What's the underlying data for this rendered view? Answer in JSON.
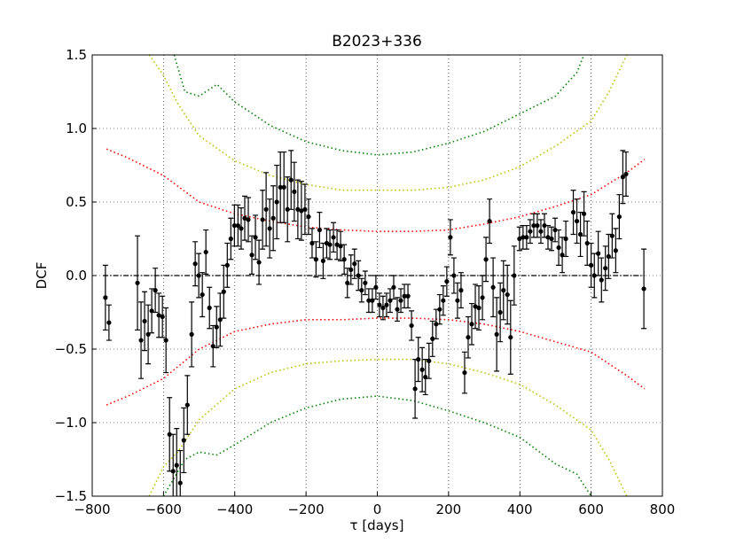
{
  "chart_data": {
    "type": "errorbar",
    "title": "B2023+336",
    "xlabel": "τ [days]",
    "ylabel": "DCF",
    "xlim": [
      -800,
      800
    ],
    "ylim": [
      -1.5,
      1.5
    ],
    "xticks": [
      {
        "value": -800,
        "label": "−800"
      },
      {
        "value": -600,
        "label": "−600"
      },
      {
        "value": -400,
        "label": "−400"
      },
      {
        "value": -200,
        "label": "−200"
      },
      0,
      200,
      400,
      600,
      800
    ],
    "yticks": [
      {
        "value": -1.5,
        "label": "−1.5"
      },
      {
        "value": -1.0,
        "label": "−1.0"
      },
      {
        "value": -0.5,
        "label": "−0.5"
      },
      {
        "value": 0,
        "label": "0.0"
      },
      {
        "value": 0.5,
        "label": "0.5"
      },
      {
        "value": 1.0,
        "label": "1.0"
      },
      {
        "value": 1.5,
        "label": "1.5"
      }
    ],
    "grid": true,
    "points": {
      "color": "#000000",
      "x": [
        -763,
        -753,
        -673,
        -663,
        -653,
        -643,
        -633,
        -623,
        -613,
        -603,
        -593,
        -583,
        -573,
        -563,
        -553,
        -543,
        -533,
        -521,
        -511,
        -501,
        -491,
        -481,
        -471,
        -461,
        -451,
        -441,
        -431,
        -421,
        -411,
        -401,
        -391,
        -382,
        -372,
        -362,
        -352,
        -342,
        -332,
        -322,
        -312,
        -302,
        -292,
        -282,
        -272,
        -262,
        -252,
        -242,
        -233,
        -223,
        -213,
        -203,
        -193,
        -183,
        -172,
        -162,
        -152,
        -142,
        -133,
        -123,
        -113,
        -103,
        -93,
        -84,
        -74,
        -64,
        -53,
        -44,
        -34,
        -24,
        -14,
        -4,
        6,
        16,
        26,
        36,
        46,
        56,
        66,
        76,
        86,
        96,
        106,
        115,
        126,
        135,
        145,
        155,
        165,
        175,
        185,
        195,
        205,
        215,
        225,
        235,
        245,
        255,
        265,
        275,
        285,
        295,
        305,
        315,
        325,
        335,
        345,
        354,
        365,
        374,
        384,
        399,
        409,
        419,
        429,
        439,
        449,
        459,
        469,
        479,
        489,
        499,
        509,
        519,
        529,
        550,
        560,
        570,
        580,
        589,
        600,
        609,
        620,
        629,
        640,
        649,
        659,
        669,
        679,
        689,
        698,
        748
      ],
      "values": [
        -0.15,
        -0.32,
        -0.05,
        -0.44,
        -0.31,
        -0.4,
        -0.24,
        -0.1,
        -0.27,
        -0.28,
        -0.44,
        -1.08,
        -1.33,
        -1.29,
        -1.41,
        -1.12,
        -0.88,
        -0.4,
        0.08,
        0.0,
        -0.13,
        0.16,
        -0.22,
        -0.48,
        -0.35,
        -0.3,
        -0.11,
        0.07,
        0.25,
        0.34,
        0.34,
        0.32,
        0.39,
        0.38,
        0.14,
        0.26,
        0.09,
        0.38,
        0.45,
        0.32,
        0.39,
        0.5,
        0.6,
        0.6,
        0.45,
        0.65,
        0.57,
        0.45,
        0.44,
        0.45,
        0.4,
        0.22,
        0.11,
        0.31,
        0.1,
        0.22,
        0.21,
        0.26,
        0.21,
        0.2,
        0.11,
        -0.05,
        0.04,
        0.08,
        0.0,
        -0.1,
        -0.05,
        -0.17,
        -0.17,
        -0.08,
        -0.2,
        -0.22,
        -0.2,
        -0.17,
        -0.08,
        -0.23,
        -0.17,
        -0.14,
        -0.14,
        -0.34,
        -0.77,
        -0.57,
        -0.64,
        -0.69,
        -0.58,
        -0.43,
        -0.33,
        -0.23,
        -0.17,
        -0.04,
        0.26,
        0.0,
        -0.17,
        -0.1,
        -0.66,
        -0.42,
        -0.33,
        -0.21,
        -0.22,
        -0.15,
        0.11,
        0.37,
        -0.08,
        -0.4,
        -0.25,
        -0.1,
        -0.13,
        -0.42,
        0.0,
        0.25,
        0.26,
        0.26,
        0.3,
        0.34,
        0.34,
        0.3,
        0.34,
        0.26,
        0.25,
        0.31,
        0.19,
        0.14,
        0.25,
        0.43,
        0.37,
        0.28,
        0.42,
        0.22,
        0.07,
        0.0,
        0.15,
        -0.03,
        0.05,
        0.13,
        0.27,
        0.17,
        0.4,
        0.67,
        0.69,
        -0.09
      ],
      "errors": [
        0.22,
        0.12,
        0.32,
        0.26,
        0.2,
        0.2,
        0.15,
        0.15,
        0.15,
        0.14,
        0.22,
        0.25,
        0.25,
        0.25,
        0.22,
        0.22,
        0.2,
        0.22,
        0.15,
        0.15,
        0.15,
        0.15,
        0.14,
        0.14,
        0.14,
        0.18,
        0.18,
        0.15,
        0.14,
        0.14,
        0.14,
        0.14,
        0.15,
        0.15,
        0.13,
        0.15,
        0.15,
        0.2,
        0.25,
        0.2,
        0.22,
        0.25,
        0.24,
        0.24,
        0.22,
        0.2,
        0.2,
        0.2,
        0.2,
        0.17,
        0.12,
        0.1,
        0.12,
        0.12,
        0.12,
        0.1,
        0.1,
        0.1,
        0.1,
        0.1,
        0.1,
        0.1,
        0.1,
        0.1,
        0.1,
        0.08,
        0.08,
        0.08,
        0.08,
        0.08,
        0.08,
        0.08,
        0.08,
        0.08,
        0.08,
        0.08,
        0.08,
        0.08,
        0.08,
        0.1,
        0.2,
        0.15,
        0.15,
        0.12,
        0.12,
        0.12,
        0.1,
        0.1,
        0.1,
        0.1,
        0.12,
        0.12,
        0.12,
        0.12,
        0.14,
        0.14,
        0.14,
        0.15,
        0.15,
        0.15,
        0.15,
        0.15,
        0.2,
        0.25,
        0.2,
        0.2,
        0.2,
        0.25,
        0.2,
        0.08,
        0.08,
        0.08,
        0.08,
        0.08,
        0.08,
        0.08,
        0.08,
        0.08,
        0.08,
        0.08,
        0.12,
        0.12,
        0.12,
        0.15,
        0.15,
        0.15,
        0.15,
        0.15,
        0.15,
        0.15,
        0.15,
        0.15,
        0.15,
        0.15,
        0.15,
        0.15,
        0.15,
        0.18,
        0.15,
        0.27
      ]
    },
    "curves": [
      {
        "color": "#ff0000",
        "x": [
          -760,
          -700,
          -600,
          -500,
          -400,
          -300,
          -200,
          -100,
          0,
          100,
          200,
          300,
          400,
          500,
          600,
          700,
          750
        ],
        "values": [
          0.86,
          0.8,
          0.68,
          0.5,
          0.42,
          0.37,
          0.33,
          0.31,
          0.3,
          0.3,
          0.31,
          0.35,
          0.4,
          0.47,
          0.55,
          0.7,
          0.79
        ]
      },
      {
        "color": "#ff0000",
        "x": [
          -760,
          -700,
          -600,
          -500,
          -400,
          -300,
          -200,
          -100,
          0,
          100,
          200,
          300,
          400,
          500,
          600,
          700,
          750
        ],
        "values": [
          -0.88,
          -0.82,
          -0.7,
          -0.5,
          -0.38,
          -0.33,
          -0.3,
          -0.3,
          -0.29,
          -0.29,
          -0.3,
          -0.33,
          -0.38,
          -0.45,
          -0.52,
          -0.68,
          -0.77
        ]
      },
      {
        "color": "#bfbf00",
        "x": [
          -640,
          -600,
          -560,
          -500,
          -400,
          -300,
          -200,
          -100,
          0,
          100,
          200,
          300,
          400,
          500,
          600,
          650,
          700
        ],
        "values": [
          1.5,
          1.36,
          1.17,
          0.95,
          0.78,
          0.68,
          0.62,
          0.58,
          0.58,
          0.58,
          0.6,
          0.65,
          0.74,
          0.88,
          1.05,
          1.25,
          1.5
        ]
      },
      {
        "color": "#bfbf00",
        "x": [
          -640,
          -600,
          -560,
          -500,
          -400,
          -300,
          -200,
          -100,
          0,
          100,
          200,
          300,
          400,
          500,
          600,
          650,
          700
        ],
        "values": [
          -1.5,
          -1.3,
          -1.2,
          -0.98,
          -0.77,
          -0.66,
          -0.6,
          -0.58,
          -0.57,
          -0.57,
          -0.6,
          -0.66,
          -0.74,
          -0.88,
          -1.05,
          -1.25,
          -1.5
        ]
      },
      {
        "color": "#008000",
        "x": [
          -570,
          -540,
          -500,
          -450,
          -400,
          -300,
          -200,
          -100,
          0,
          100,
          200,
          300,
          400,
          500,
          560,
          580
        ],
        "values": [
          1.5,
          1.25,
          1.22,
          1.3,
          1.18,
          1.02,
          0.91,
          0.85,
          0.82,
          0.84,
          0.9,
          0.98,
          1.1,
          1.22,
          1.38,
          1.5
        ]
      },
      {
        "color": "#008000",
        "x": [
          -600,
          -540,
          -500,
          -450,
          -400,
          -300,
          -200,
          -100,
          0,
          100,
          200,
          300,
          400,
          500,
          560,
          600
        ],
        "values": [
          -1.5,
          -1.25,
          -1.2,
          -1.22,
          -1.15,
          -1.0,
          -0.9,
          -0.84,
          -0.82,
          -0.85,
          -0.92,
          -1.0,
          -1.1,
          -1.28,
          -1.35,
          -1.5
        ]
      }
    ],
    "baseline": {
      "color": "#000000",
      "x": [
        -770,
        750
      ],
      "values": [
        0.0,
        0.0
      ]
    }
  }
}
